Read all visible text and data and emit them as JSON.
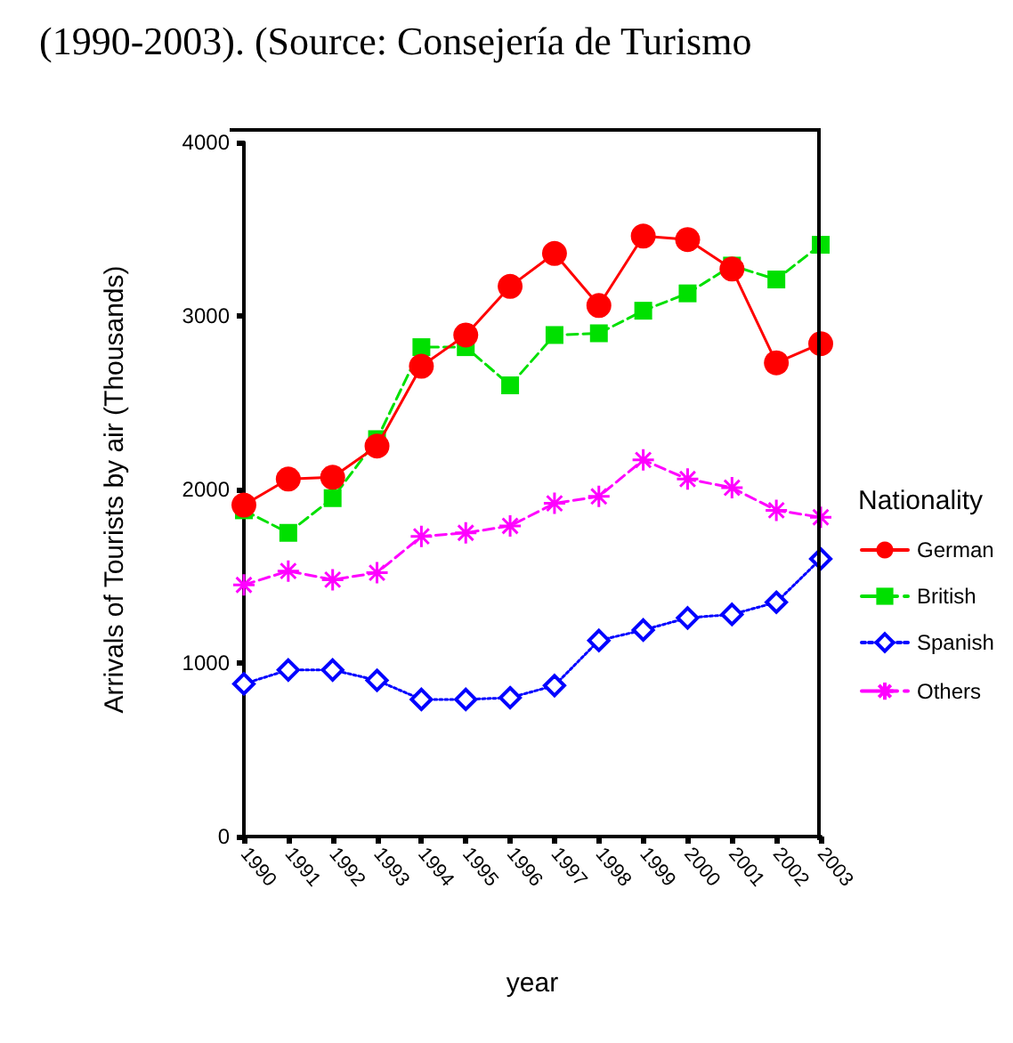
{
  "chart_data": {
    "type": "line",
    "annotations": [
      "(1990-2003). (Source: Consejería de Turismo"
    ],
    "xlabel": "year",
    "ylabel": "Arrivals of Tourists by air (Thousands)",
    "legend_title": "Nationality",
    "legend": "right",
    "grid": false,
    "categories": [
      "1990",
      "1991",
      "1992",
      "1993",
      "1994",
      "1995",
      "1996",
      "1997",
      "1998",
      "1999",
      "2000",
      "2001",
      "2002",
      "2003"
    ],
    "ylim": [
      0,
      4000
    ],
    "yticks": [
      0,
      1000,
      2000,
      3000,
      4000
    ],
    "series": [
      {
        "name": "German",
        "color": "#ff0000",
        "marker": "circle",
        "line_style": "solid",
        "values": [
          1910,
          2060,
          2070,
          2250,
          2710,
          2890,
          3170,
          3360,
          3060,
          3460,
          3440,
          3270,
          2730,
          2840
        ]
      },
      {
        "name": "British",
        "color": "#00e000",
        "marker": "square",
        "line_style": "dashed",
        "values": [
          1880,
          1750,
          1950,
          2290,
          2820,
          2820,
          2600,
          2890,
          2900,
          3030,
          3130,
          3290,
          3210,
          3410
        ]
      },
      {
        "name": "Spanish",
        "color": "#0000ff",
        "marker": "diamond",
        "line_style": "dotted",
        "values": [
          880,
          960,
          960,
          900,
          790,
          790,
          800,
          870,
          1130,
          1190,
          1260,
          1280,
          1350,
          1600
        ]
      },
      {
        "name": "Others",
        "color": "#ff00ff",
        "marker": "cross",
        "line_style": "dashed",
        "values": [
          1450,
          1530,
          1480,
          1520,
          1730,
          1750,
          1790,
          1920,
          1960,
          2170,
          2060,
          2010,
          1880,
          1840
        ]
      }
    ]
  }
}
